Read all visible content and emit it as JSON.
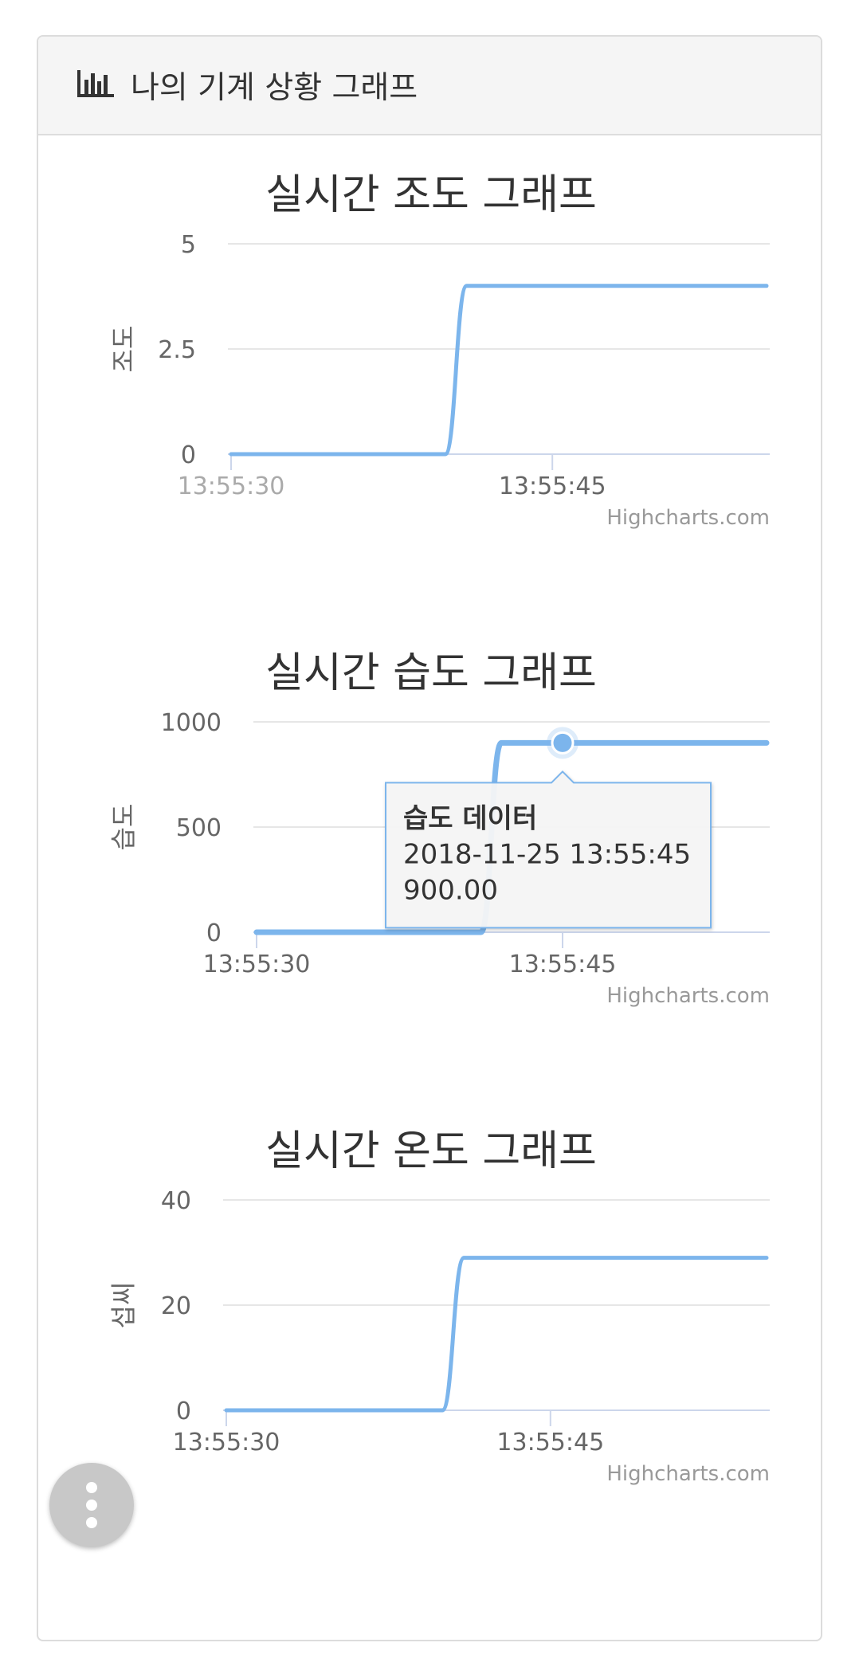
{
  "panel": {
    "title": "나의 기계 상황 그래프",
    "icon": "bar-chart-icon"
  },
  "credits": "Highcharts.com",
  "colors": {
    "series": "#7cb5ec",
    "grid": "#e6e6e6",
    "axis": "#ccd6eb",
    "text": "#666666",
    "title": "#333333"
  },
  "chart_data": [
    {
      "type": "line",
      "title": "실시간 조도 그래프",
      "ylabel": "조도",
      "ylim": [
        0,
        5
      ],
      "yticks": [
        "0",
        "2.5",
        "5"
      ],
      "xticks": [
        "13:55:30",
        "13:55:45"
      ],
      "series": [
        {
          "x": [
            "13:55:30",
            "13:55:31",
            "13:55:32",
            "13:55:33",
            "13:55:34",
            "13:55:35",
            "13:55:36",
            "13:55:37",
            "13:55:38",
            "13:55:39",
            "13:55:40",
            "13:55:41",
            "13:55:42",
            "13:55:43",
            "13:55:44",
            "13:55:45",
            "13:55:46",
            "13:55:47",
            "13:55:48",
            "13:55:49",
            "13:55:50",
            "13:55:51",
            "13:55:52",
            "13:55:53",
            "13:55:54",
            "13:55:55"
          ],
          "values": [
            0,
            0,
            0,
            0,
            0,
            0,
            0,
            0,
            0,
            0,
            0,
            4,
            4,
            4,
            4,
            4,
            4,
            4,
            4,
            4,
            4,
            4,
            4,
            4,
            4,
            4
          ]
        }
      ]
    },
    {
      "type": "line",
      "title": "실시간 습도 그래프",
      "ylabel": "습도",
      "ylim": [
        0,
        1000
      ],
      "yticks": [
        "0",
        "500",
        "1000"
      ],
      "xticks": [
        "13:55:30",
        "13:55:45"
      ],
      "series": [
        {
          "name": "습도 데이터",
          "x": [
            "13:55:30",
            "13:55:31",
            "13:55:32",
            "13:55:33",
            "13:55:34",
            "13:55:35",
            "13:55:36",
            "13:55:37",
            "13:55:38",
            "13:55:39",
            "13:55:40",
            "13:55:41",
            "13:55:42",
            "13:55:43",
            "13:55:44",
            "13:55:45",
            "13:55:46",
            "13:55:47",
            "13:55:48",
            "13:55:49",
            "13:55:50",
            "13:55:51",
            "13:55:52",
            "13:55:53",
            "13:55:54",
            "13:55:55"
          ],
          "values": [
            0,
            0,
            0,
            0,
            0,
            0,
            0,
            0,
            0,
            0,
            0,
            0,
            900,
            900,
            900,
            900,
            900,
            900,
            900,
            900,
            900,
            900,
            900,
            900,
            900,
            900
          ]
        }
      ],
      "tooltip": {
        "series": "습도 데이터",
        "date": "2018-11-25 13:55:45",
        "value": "900.00",
        "point_x": "13:55:45",
        "point_y": 900
      }
    },
    {
      "type": "line",
      "title": "실시간 온도 그래프",
      "ylabel": "섭씨",
      "ylim": [
        0,
        40
      ],
      "yticks": [
        "0",
        "20",
        "40"
      ],
      "xticks": [
        "13:55:30",
        "13:55:45"
      ],
      "series": [
        {
          "x": [
            "13:55:30",
            "13:55:31",
            "13:55:32",
            "13:55:33",
            "13:55:34",
            "13:55:35",
            "13:55:36",
            "13:55:37",
            "13:55:38",
            "13:55:39",
            "13:55:40",
            "13:55:41",
            "13:55:42",
            "13:55:43",
            "13:55:44",
            "13:55:45",
            "13:55:46",
            "13:55:47",
            "13:55:48",
            "13:55:49",
            "13:55:50",
            "13:55:51",
            "13:55:52",
            "13:55:53",
            "13:55:54",
            "13:55:55"
          ],
          "values": [
            0,
            0,
            0,
            0,
            0,
            0,
            0,
            0,
            0,
            0,
            0,
            29,
            29,
            29,
            29,
            29,
            29,
            29,
            29,
            29,
            29,
            29,
            29,
            29,
            29,
            29
          ]
        }
      ]
    }
  ]
}
